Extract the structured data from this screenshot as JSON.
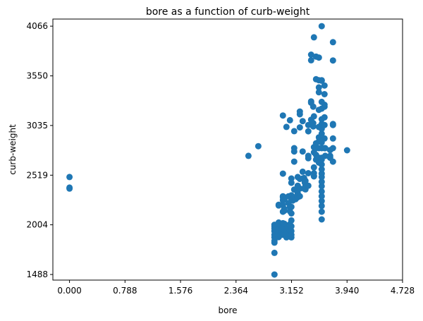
{
  "chart_data": {
    "type": "scatter",
    "title": "bore as a function of curb-weight",
    "xlabel": "bore",
    "ylabel": "curb-weight",
    "xlim": [
      -0.236,
      4.728
    ],
    "ylim": [
      1430,
      4140
    ],
    "xticks": [
      0.0,
      0.788,
      1.576,
      2.364,
      3.152,
      3.94,
      4.728
    ],
    "xtick_labels": [
      "0.000",
      "0.788",
      "1.576",
      "2.364",
      "3.152",
      "3.940",
      "4.728"
    ],
    "yticks": [
      1488,
      2004,
      2519,
      3035,
      3550,
      4066
    ],
    "ytick_labels": [
      "1488",
      "2004",
      "2519",
      "3035",
      "3550",
      "4066"
    ],
    "grid": false,
    "marker_color": "#1f77b4",
    "points": [
      [
        0.0,
        2500
      ],
      [
        0.0,
        2390
      ],
      [
        0.0,
        2380
      ],
      [
        2.54,
        2720
      ],
      [
        2.68,
        2820
      ],
      [
        2.91,
        1488
      ],
      [
        2.91,
        1713
      ],
      [
        2.91,
        1819
      ],
      [
        2.91,
        1837
      ],
      [
        2.91,
        1874
      ],
      [
        2.91,
        1900
      ],
      [
        2.91,
        1938
      ],
      [
        2.91,
        1967
      ],
      [
        2.91,
        1989
      ],
      [
        2.91,
        2004
      ],
      [
        2.97,
        1876
      ],
      [
        2.97,
        1909
      ],
      [
        2.97,
        1918
      ],
      [
        2.97,
        1940
      ],
      [
        2.97,
        1956
      ],
      [
        2.97,
        2010
      ],
      [
        2.97,
        2028
      ],
      [
        2.97,
        2204
      ],
      [
        2.97,
        2212
      ],
      [
        3.01,
        1937
      ],
      [
        3.01,
        1950
      ],
      [
        3.01,
        2003
      ],
      [
        3.03,
        1900
      ],
      [
        3.03,
        1920
      ],
      [
        3.03,
        1945
      ],
      [
        3.03,
        1970
      ],
      [
        3.03,
        1989
      ],
      [
        3.03,
        2010
      ],
      [
        3.03,
        2020
      ],
      [
        3.03,
        2140
      ],
      [
        3.03,
        2209
      ],
      [
        3.03,
        2260
      ],
      [
        3.03,
        2290
      ],
      [
        3.03,
        2300
      ],
      [
        3.03,
        2535
      ],
      [
        3.03,
        3139
      ],
      [
        3.05,
        1905
      ],
      [
        3.05,
        1951
      ],
      [
        3.05,
        1971
      ],
      [
        3.05,
        2015
      ],
      [
        3.05,
        2150
      ],
      [
        3.05,
        2169
      ],
      [
        3.05,
        2265
      ],
      [
        3.05,
        2290
      ],
      [
        3.08,
        1874
      ],
      [
        3.08,
        1909
      ],
      [
        3.08,
        1967
      ],
      [
        3.08,
        3020
      ],
      [
        3.11,
        2300
      ],
      [
        3.11,
        2230
      ],
      [
        3.13,
        1905
      ],
      [
        3.13,
        1945
      ],
      [
        3.13,
        2010
      ],
      [
        3.13,
        2145
      ],
      [
        3.13,
        2191
      ],
      [
        3.13,
        3090
      ],
      [
        3.15,
        1874
      ],
      [
        3.15,
        1900
      ],
      [
        3.15,
        1940
      ],
      [
        3.15,
        1989
      ],
      [
        3.15,
        2050
      ],
      [
        3.15,
        2122
      ],
      [
        3.15,
        2190
      ],
      [
        3.15,
        2275
      ],
      [
        3.15,
        2310
      ],
      [
        3.15,
        2440
      ],
      [
        3.15,
        2485
      ],
      [
        3.17,
        2256
      ],
      [
        3.17,
        2290
      ],
      [
        3.19,
        2290
      ],
      [
        3.19,
        2370
      ],
      [
        3.19,
        2660
      ],
      [
        3.19,
        2765
      ],
      [
        3.19,
        2800
      ],
      [
        3.19,
        2976
      ],
      [
        3.21,
        2270
      ],
      [
        3.24,
        2290
      ],
      [
        3.24,
        2300
      ],
      [
        3.24,
        2330
      ],
      [
        3.24,
        2385
      ],
      [
        3.24,
        2410
      ],
      [
        3.24,
        2500
      ],
      [
        3.27,
        2300
      ],
      [
        3.27,
        2380
      ],
      [
        3.27,
        2480
      ],
      [
        3.27,
        3015
      ],
      [
        3.27,
        3151
      ],
      [
        3.27,
        3180
      ],
      [
        3.31,
        2485
      ],
      [
        3.31,
        2555
      ],
      [
        3.31,
        2765
      ],
      [
        3.31,
        3080
      ],
      [
        3.33,
        2380
      ],
      [
        3.33,
        2490
      ],
      [
        3.34,
        2385
      ],
      [
        3.34,
        2443
      ],
      [
        3.34,
        2465
      ],
      [
        3.35,
        2372
      ],
      [
        3.35,
        2410
      ],
      [
        3.35,
        2460
      ],
      [
        3.39,
        2410
      ],
      [
        3.39,
        2540
      ],
      [
        3.39,
        2695
      ],
      [
        3.39,
        2720
      ],
      [
        3.39,
        2975
      ],
      [
        3.39,
        3040
      ],
      [
        3.43,
        3095
      ],
      [
        3.43,
        3285
      ],
      [
        3.43,
        3271
      ],
      [
        3.43,
        3712
      ],
      [
        3.43,
        3770
      ],
      [
        3.46,
        3025
      ],
      [
        3.46,
        3060
      ],
      [
        3.46,
        3230
      ],
      [
        3.47,
        2507
      ],
      [
        3.47,
        2510
      ],
      [
        3.47,
        2540
      ],
      [
        3.47,
        2600
      ],
      [
        3.47,
        2756
      ],
      [
        3.47,
        2810
      ],
      [
        3.47,
        3130
      ],
      [
        3.47,
        3950
      ],
      [
        3.5,
        2800
      ],
      [
        3.5,
        2850
      ],
      [
        3.5,
        2680
      ],
      [
        3.5,
        2730
      ],
      [
        3.5,
        3515
      ],
      [
        3.5,
        3750
      ],
      [
        3.54,
        3505
      ],
      [
        3.54,
        2800
      ],
      [
        3.54,
        2650
      ],
      [
        3.54,
        2700
      ],
      [
        3.54,
        2870
      ],
      [
        3.54,
        2912
      ],
      [
        3.54,
        3020
      ],
      [
        3.54,
        3020
      ],
      [
        3.54,
        3197
      ],
      [
        3.54,
        3740
      ],
      [
        3.54,
        3380
      ],
      [
        3.54,
        3430
      ],
      [
        3.58,
        3505
      ],
      [
        3.58,
        2060
      ],
      [
        3.58,
        2140
      ],
      [
        3.58,
        2200
      ],
      [
        3.58,
        2250
      ],
      [
        3.58,
        2300
      ],
      [
        3.58,
        2350
      ],
      [
        3.58,
        2405
      ],
      [
        3.58,
        2450
      ],
      [
        3.58,
        2500
      ],
      [
        3.58,
        2535
      ],
      [
        3.58,
        2580
      ],
      [
        3.58,
        2630
      ],
      [
        3.58,
        2680
      ],
      [
        3.58,
        2700
      ],
      [
        3.58,
        2800
      ],
      [
        3.58,
        2860
      ],
      [
        3.58,
        2950
      ],
      [
        3.58,
        3000
      ],
      [
        3.58,
        3050
      ],
      [
        3.58,
        3100
      ],
      [
        3.58,
        3210
      ],
      [
        3.58,
        3280
      ],
      [
        3.58,
        3500
      ],
      [
        3.58,
        4066
      ],
      [
        3.62,
        2800
      ],
      [
        3.62,
        2900
      ],
      [
        3.62,
        3040
      ],
      [
        3.62,
        3120
      ],
      [
        3.62,
        3230
      ],
      [
        3.62,
        3250
      ],
      [
        3.62,
        3450
      ],
      [
        3.62,
        3360
      ],
      [
        3.63,
        2720
      ],
      [
        3.63,
        2800
      ],
      [
        3.7,
        2720
      ],
      [
        3.7,
        2780
      ],
      [
        3.7,
        2700
      ],
      [
        3.74,
        3050
      ],
      [
        3.74,
        3040
      ],
      [
        3.74,
        2900
      ],
      [
        3.74,
        2800
      ],
      [
        3.74,
        2660
      ],
      [
        3.74,
        3710
      ],
      [
        3.74,
        3900
      ],
      [
        3.94,
        2778
      ]
    ]
  }
}
